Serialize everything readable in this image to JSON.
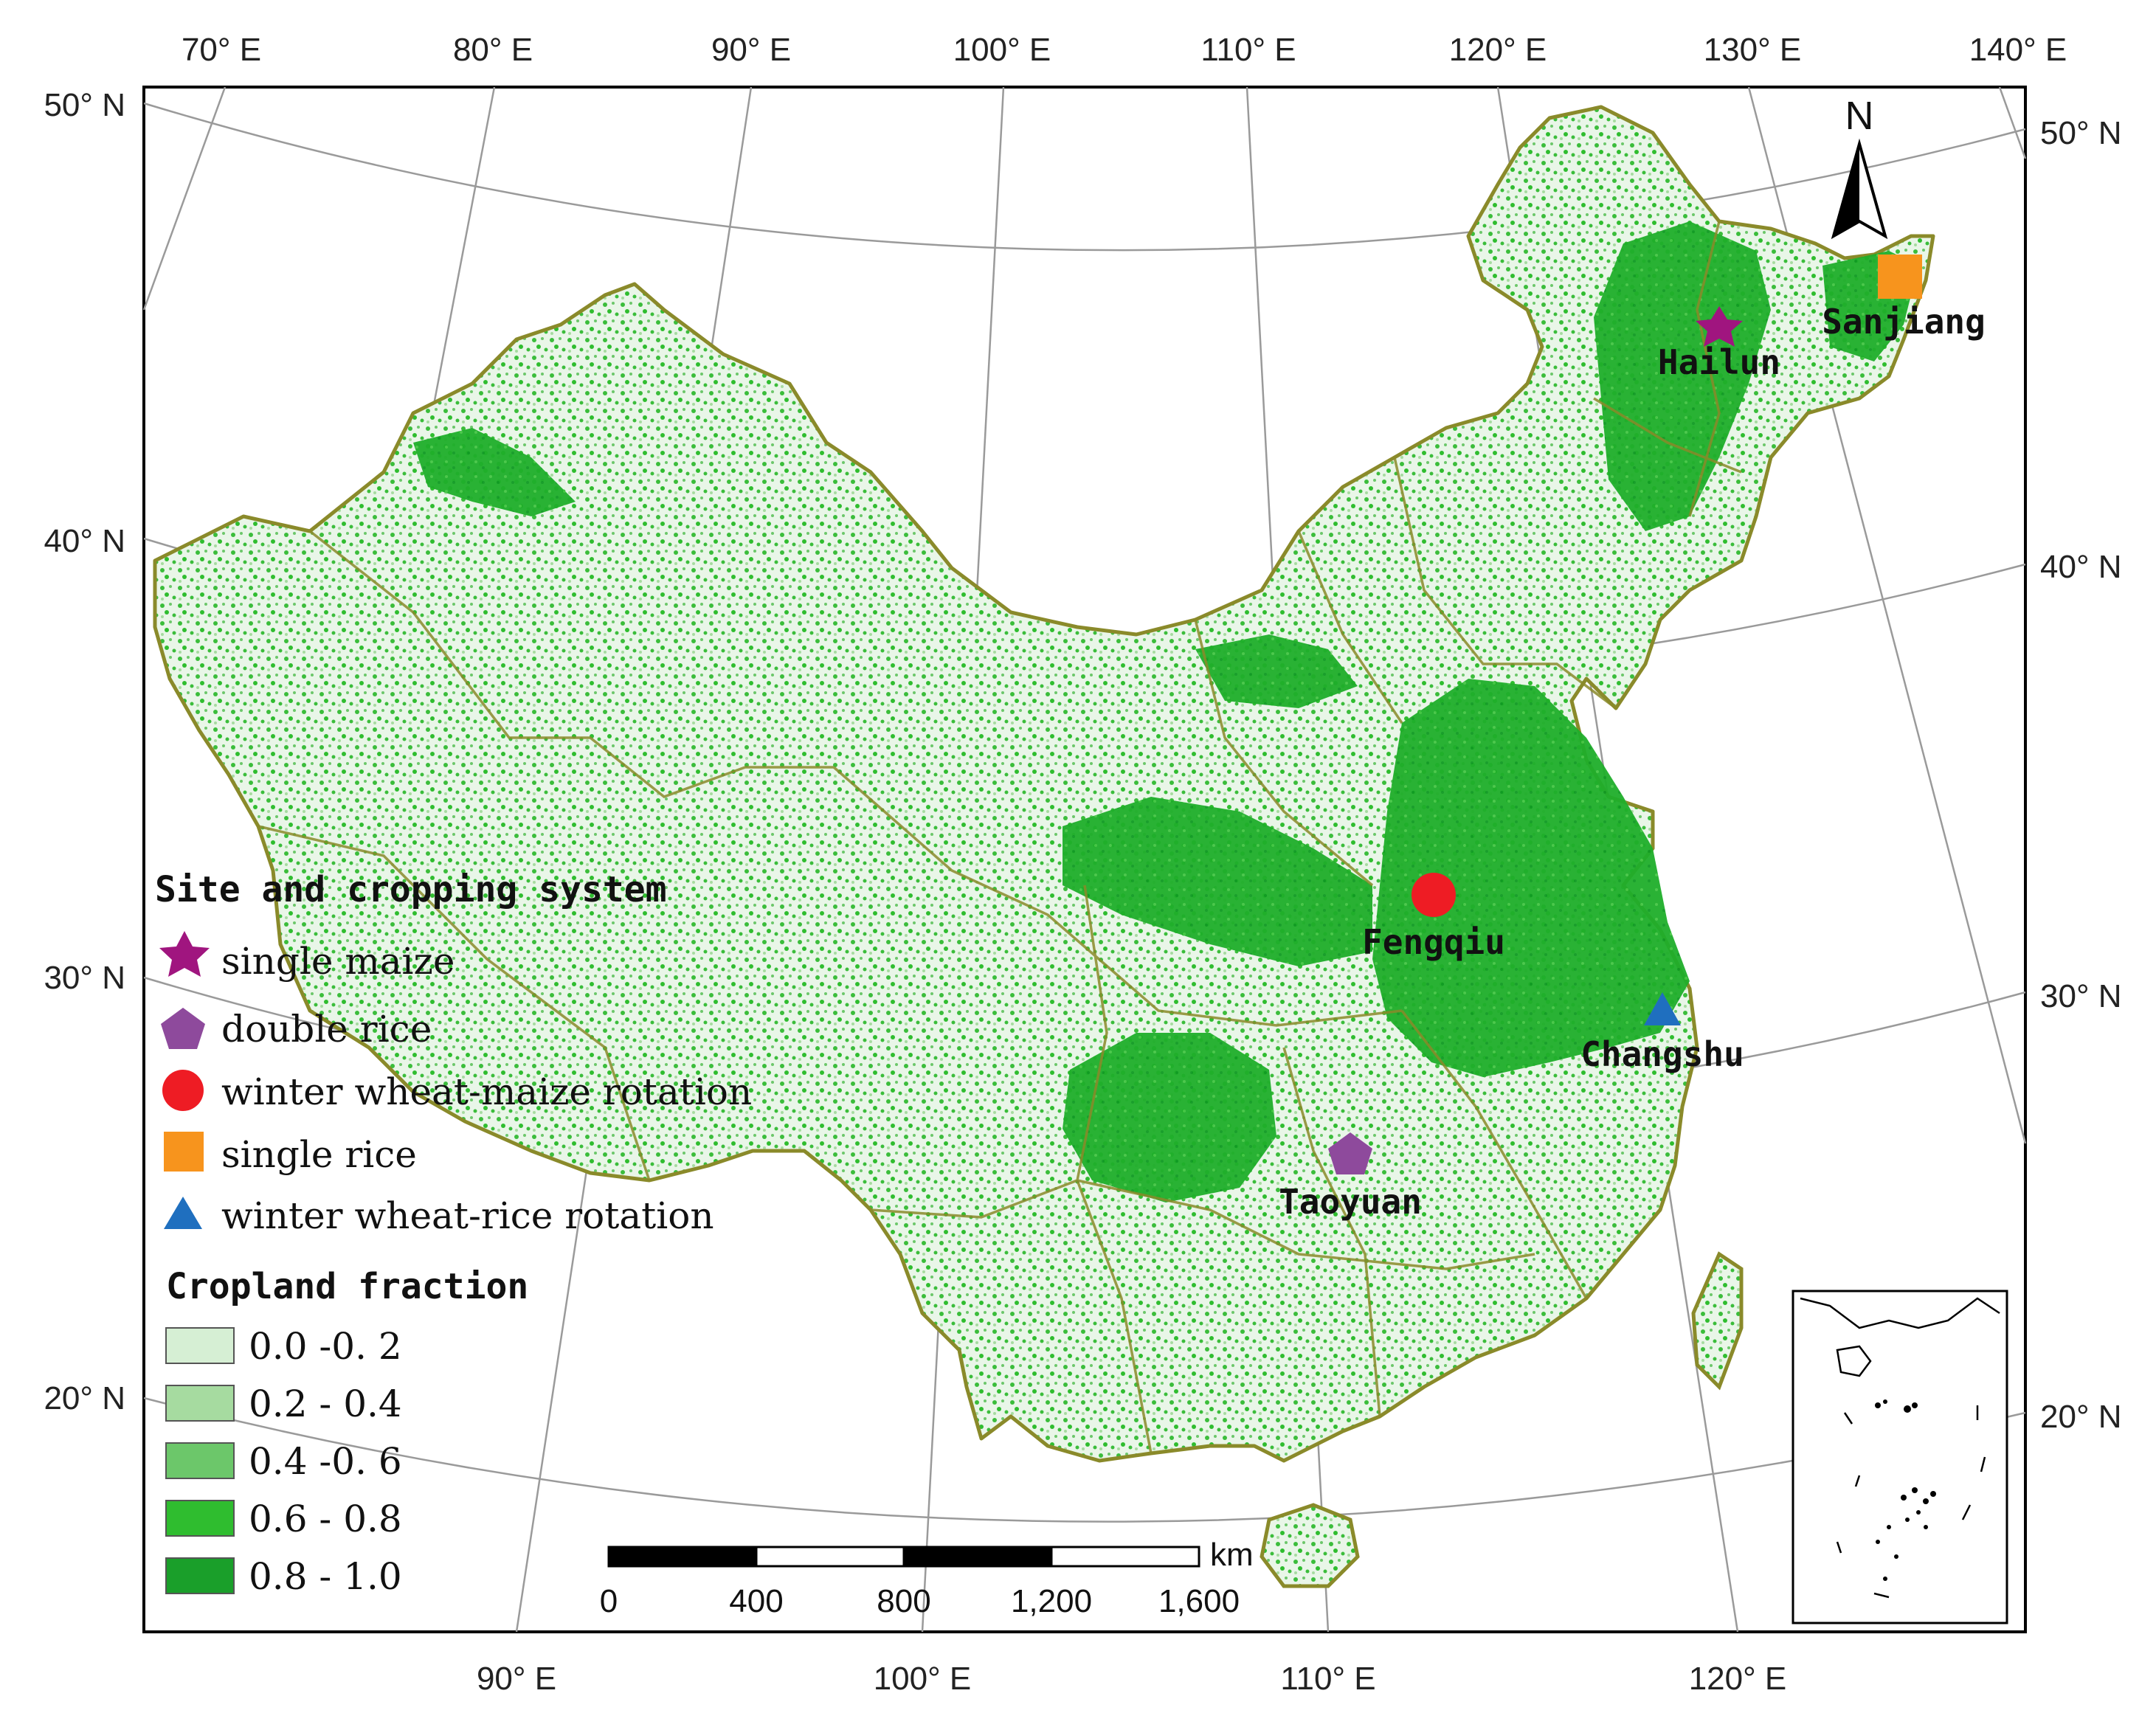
{
  "map": {
    "top_lon_labels": [
      "70° E",
      "80° E",
      "90° E",
      "100° E",
      "110° E",
      "120° E",
      "130° E",
      "140° E"
    ],
    "bottom_lon_labels": [
      "90° E",
      "100° E",
      "110° E",
      "120° E"
    ],
    "left_lat_labels": [
      "50° N",
      "40° N",
      "30° N",
      "20° N"
    ],
    "right_lat_labels": [
      "50° N",
      "40° N",
      "30° N",
      "20° N"
    ],
    "north_label": "N"
  },
  "sites": [
    {
      "name": "Hailun",
      "system": "single maize",
      "symbol": "star",
      "color": "#a0157f"
    },
    {
      "name": "Sanjiang",
      "system": "single rice",
      "symbol": "square",
      "color": "#f7941d"
    },
    {
      "name": "Fengqiu",
      "system": "winter wheat-maize rotation",
      "symbol": "circle",
      "color": "#ee1c24"
    },
    {
      "name": "Changshu",
      "system": "winter wheat-rice rotation",
      "symbol": "triangle",
      "color": "#1f6fbf"
    },
    {
      "name": "Taoyuan",
      "system": "double rice",
      "symbol": "pentagon",
      "color": "#8e4a9c"
    }
  ],
  "legend": {
    "site_title": "Site and cropping system",
    "site_items": [
      {
        "label": "single maize",
        "symbol": "star",
        "color": "#a0157f"
      },
      {
        "label": "double rice",
        "symbol": "pentagon",
        "color": "#8e4a9c"
      },
      {
        "label": "winter wheat-maize rotation",
        "symbol": "circle",
        "color": "#ee1c24"
      },
      {
        "label": "single rice",
        "symbol": "square",
        "color": "#f7941d"
      },
      {
        "label": "winter wheat-rice rotation",
        "symbol": "triangle",
        "color": "#1f6fbf"
      }
    ],
    "fraction_title": "Cropland fraction",
    "fraction_classes": [
      {
        "label": "0.0 -0. 2",
        "color": "#d6efd4"
      },
      {
        "label": "0.2 - 0.4",
        "color": "#a6dba0"
      },
      {
        "label": "0.4 -0. 6",
        "color": "#6cc76a"
      },
      {
        "label": "0.6 - 0.8",
        "color": "#2fbd2f"
      },
      {
        "label": "0.8 - 1.0",
        "color": "#1a9f2a"
      }
    ]
  },
  "scale_bar": {
    "unit": "km",
    "ticks": [
      "0",
      "400",
      "800",
      "1,200",
      "1,600"
    ]
  }
}
